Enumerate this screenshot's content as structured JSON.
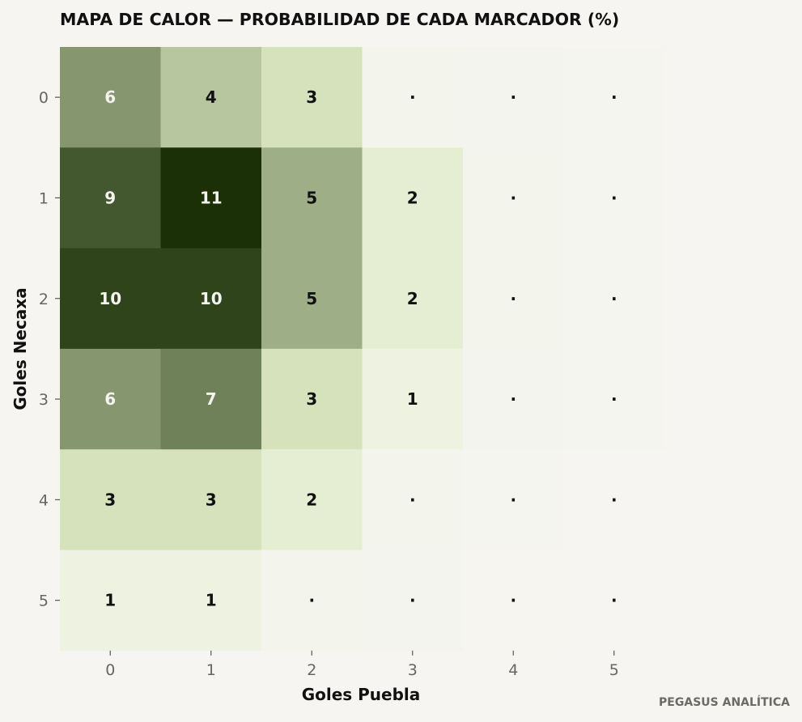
{
  "chart_data": {
    "type": "heatmap",
    "title": "MAPA DE CALOR — PROBABILIDAD DE CADA MARCADOR (%)",
    "xlabel": "Goles Puebla",
    "ylabel": "Goles Necaxa",
    "x_categories": [
      "0",
      "1",
      "2",
      "3",
      "4",
      "5"
    ],
    "y_categories": [
      "0",
      "1",
      "2",
      "3",
      "4",
      "5"
    ],
    "values": [
      [
        6,
        4,
        3,
        0.4,
        0.2,
        0.1
      ],
      [
        9,
        11,
        5,
        2,
        0.3,
        0.1
      ],
      [
        10,
        10,
        5,
        2,
        0.3,
        0.1
      ],
      [
        6,
        7,
        3,
        1,
        0.2,
        0.1
      ],
      [
        3,
        3,
        2,
        0.4,
        0.1,
        0.03
      ],
      [
        1,
        1,
        0.4,
        0.2,
        0.05,
        0.02
      ]
    ],
    "cell_labels": [
      [
        "6",
        "4",
        "3",
        "·",
        "·",
        "·"
      ],
      [
        "9",
        "11",
        "5",
        "2",
        "·",
        "·"
      ],
      [
        "10",
        "10",
        "5",
        "2",
        "·",
        "·"
      ],
      [
        "6",
        "7",
        "3",
        "1",
        "·",
        "·"
      ],
      [
        "3",
        "3",
        "2",
        "·",
        "·",
        "·"
      ],
      [
        "1",
        "1",
        "·",
        "·",
        "·",
        "·"
      ]
    ],
    "colormap": {
      "low": "#f6f5f1",
      "mid": "#dfecc6",
      "high": "#1b3007"
    },
    "light_text_color": "#f4f4f0",
    "dark_text_color": "#111111",
    "grid": false,
    "legend": "none"
  },
  "footer": {
    "credit": "PEGASUS ANALÍTICA"
  }
}
